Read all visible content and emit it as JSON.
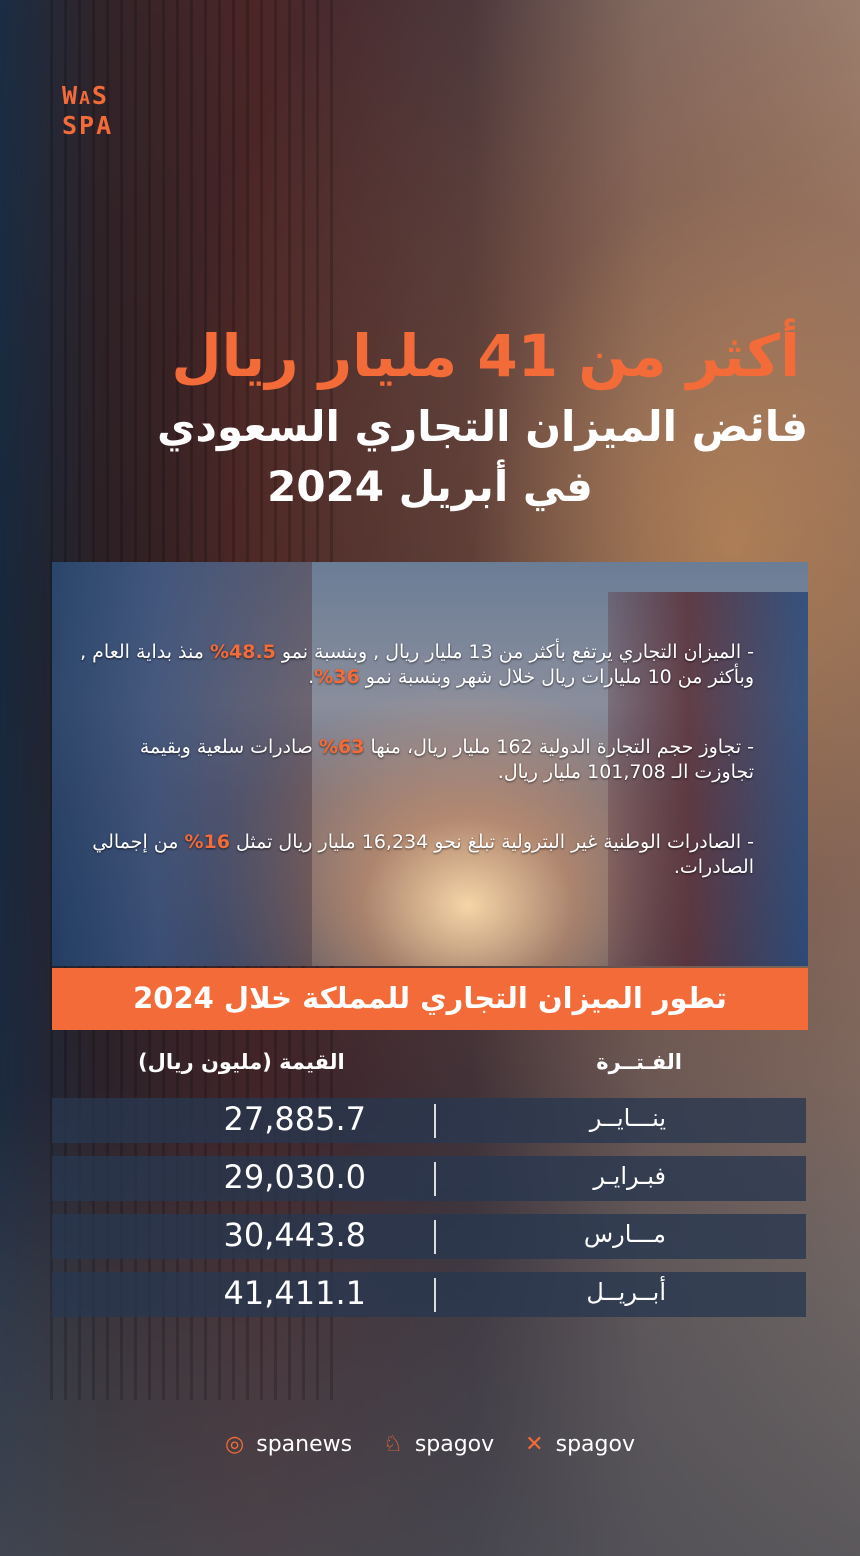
{
  "logo": {
    "lines": [
      "WAS",
      "SPA"
    ]
  },
  "title": {
    "line1": "أكثر من 41 مليار ريال",
    "line2": "فائض الميزان التجاري السعودي",
    "line3": "في أبريل 2024"
  },
  "bullets": [
    {
      "a": "-  الميزان التجاري يرتفع بأكثر من 13 مليار ريال , وبنسبة نمو ",
      "h1": "48.5%",
      "b": " منذ بداية العام , وبأكثر من 10 مليارات ريال خلال شهر وبنسبة نمو ",
      "h2": "36%",
      "c": "."
    },
    {
      "a": "- تجاوز حجم التجارة الدولية 162 مليار ريال، منها ",
      "h1": "63%",
      "b": " صادرات سلعية وبقيمة تجاوزت الـ 101,708 مليار ريال.",
      "h2": "",
      "c": ""
    },
    {
      "a": "-  الصادرات الوطنية غير البترولية تبلغ نحو 16,234 مليار ريال تمثل ",
      "h1": "16%",
      "b": " من إجمالي الصادرات.",
      "h2": "",
      "c": ""
    }
  ],
  "table": {
    "title": "تطور الميزان التجاري للمملكة خلال 2024",
    "headers": {
      "period": "الفـتــرة",
      "value": "القيمة (مليون ريال)"
    },
    "rows": [
      {
        "month": "ينـــايــر",
        "value": "27,885.7"
      },
      {
        "month": "فبـرايـر",
        "value": "29,030.0"
      },
      {
        "month": "مـــارس",
        "value": "30,443.8"
      },
      {
        "month": "أبــريــل",
        "value": "41,411.1"
      }
    ]
  },
  "footer": {
    "instagram": "spanews",
    "snapchat": "spagov",
    "x": "spagov"
  },
  "colors": {
    "accent": "#f26b38",
    "row_bg": "#28374f"
  }
}
